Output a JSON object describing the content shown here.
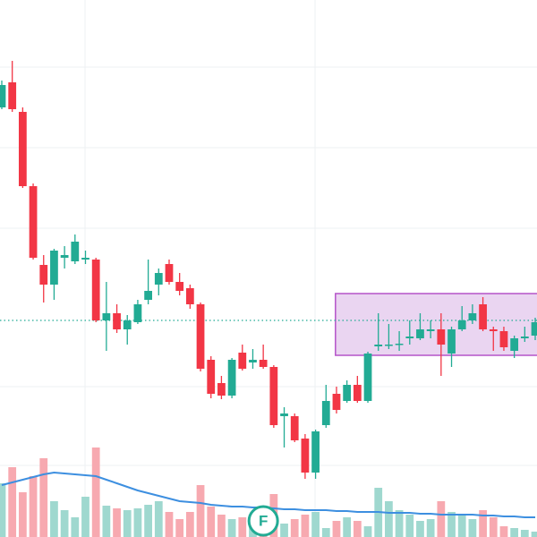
{
  "chart_data": {
    "type": "candlestick",
    "x": [
      0,
      1,
      2,
      3,
      4,
      5,
      6,
      7,
      8,
      9,
      10,
      11,
      12,
      13,
      14,
      15,
      16,
      17,
      18,
      19,
      20,
      21,
      22,
      23,
      24,
      25,
      26,
      27,
      28,
      29,
      30,
      31,
      32,
      33,
      34,
      35,
      36,
      37,
      38,
      39,
      40,
      41,
      42,
      43,
      44,
      45,
      46,
      47,
      48,
      49,
      50,
      51
    ],
    "open": [
      480,
      508,
      475,
      392,
      304,
      282,
      312,
      308,
      310,
      310,
      242,
      250,
      232,
      240,
      265,
      282,
      305,
      285,
      278,
      260,
      198,
      172,
      158,
      206,
      195,
      198,
      190,
      135,
      135,
      110,
      72,
      125,
      160,
      152,
      170,
      152,
      213,
      214,
      215,
      222,
      222,
      230,
      232,
      205,
      232,
      242,
      260,
      232,
      230,
      208,
      222,
      225
    ],
    "high": [
      510,
      532,
      480,
      395,
      315,
      322,
      325,
      338,
      320,
      312,
      285,
      260,
      248,
      265,
      310,
      300,
      310,
      295,
      282,
      262,
      202,
      180,
      200,
      215,
      210,
      215,
      192,
      145,
      138,
      115,
      120,
      170,
      168,
      175,
      180,
      207,
      250,
      238,
      230,
      242,
      250,
      242,
      250,
      235,
      258,
      260,
      268,
      235,
      235,
      225,
      235,
      245
    ],
    "low": [
      478,
      475,
      390,
      310,
      262,
      265,
      300,
      305,
      305,
      240,
      208,
      228,
      215,
      238,
      260,
      270,
      282,
      270,
      255,
      185,
      155,
      154,
      155,
      186,
      188,
      188,
      122,
      100,
      106,
      65,
      65,
      122,
      138,
      150,
      150,
      150,
      208,
      210,
      208,
      215,
      220,
      222,
      180,
      190,
      230,
      238,
      230,
      208,
      208,
      200,
      218,
      220
    ],
    "close": [
      505,
      478,
      392,
      312,
      282,
      320,
      315,
      330,
      312,
      242,
      250,
      232,
      242,
      260,
      275,
      295,
      285,
      275,
      260,
      188,
      160,
      158,
      198,
      188,
      198,
      190,
      125,
      138,
      108,
      72,
      118,
      152,
      142,
      170,
      152,
      205,
      215,
      215,
      216,
      224,
      232,
      232,
      215,
      232,
      242,
      250,
      232,
      230,
      212,
      222,
      224,
      240
    ],
    "volume": [
      60,
      78,
      50,
      68,
      88,
      40,
      30,
      22,
      45,
      100,
      35,
      32,
      30,
      32,
      36,
      40,
      28,
      20,
      28,
      58,
      34,
      25,
      20,
      22,
      16,
      12,
      48,
      15,
      20,
      25,
      28,
      10,
      18,
      22,
      18,
      12,
      55,
      40,
      30,
      25,
      18,
      20,
      40,
      28,
      25,
      20,
      30,
      22,
      12,
      10,
      8,
      6
    ],
    "ma": [
      58,
      61,
      64,
      67,
      70,
      72,
      71,
      70,
      69,
      68,
      64,
      60,
      56,
      52,
      49,
      46,
      43,
      40,
      39,
      38,
      36,
      35,
      34,
      34,
      33,
      33,
      32,
      31,
      31,
      30,
      30,
      30,
      29,
      29,
      28,
      28,
      28,
      27,
      27,
      27,
      26,
      26,
      25,
      25,
      25,
      25,
      24,
      24,
      23,
      23,
      22,
      22
    ],
    "xlim": [
      -0.171,
      51.17
    ],
    "ylim": [
      0,
      600
    ],
    "price_line": 242,
    "box": {
      "x": [
        31.9,
        52
      ],
      "y": [
        203,
        272
      ]
    },
    "annotation": {
      "text": "F",
      "x": 25,
      "y": 18
    },
    "colors": {
      "up": "#22ab94",
      "down": "#f23645",
      "up_volume": "#9fd8cf",
      "down_volume": "#f7a9b0",
      "ma": "#3d8fe0",
      "box_fill": "#e3c7ec",
      "box_stroke": "#b553c9"
    }
  }
}
